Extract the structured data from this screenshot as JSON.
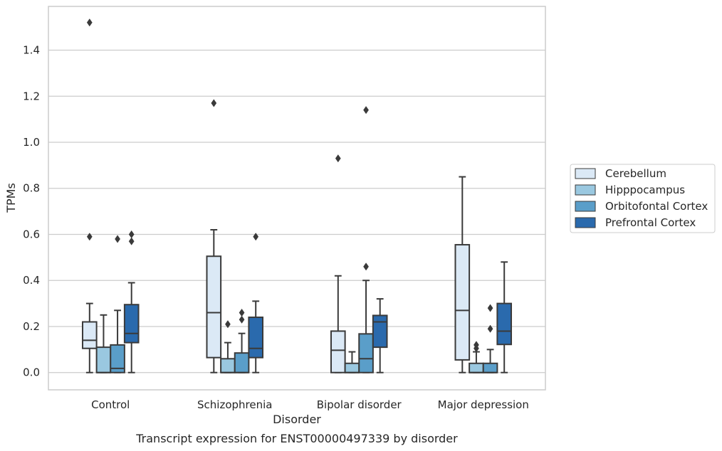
{
  "chart_data": {
    "type": "boxplot",
    "title": "",
    "caption": "Transcript expression for ENST00000497339 by disorder",
    "xlabel": "Disorder",
    "ylabel": "TPMs",
    "ylim": [
      -0.075,
      1.59
    ],
    "yticks": [
      0.0,
      0.2,
      0.4,
      0.6,
      0.8,
      1.0,
      1.2,
      1.4
    ],
    "ytick_labels": [
      "0.0",
      "0.2",
      "0.4",
      "0.6",
      "0.8",
      "1.0",
      "1.2",
      "1.4"
    ],
    "grid": "horizontal",
    "legend_position": "right",
    "categories": [
      "Control",
      "Schizophrenia",
      "Bipolar disorder",
      "Major depression"
    ],
    "series": [
      {
        "name": "Cerebellum",
        "color": "#dbe9f6",
        "boxes": [
          {
            "q1": 0.105,
            "median": 0.14,
            "q3": 0.22,
            "whisker_low": 0.0,
            "whisker_high": 0.3,
            "outliers": [
              0.59,
              1.52
            ]
          },
          {
            "q1": 0.065,
            "median": 0.26,
            "q3": 0.505,
            "whisker_low": 0.0,
            "whisker_high": 0.62,
            "outliers": [
              1.17
            ]
          },
          {
            "q1": 0.0,
            "median": 0.097,
            "q3": 0.18,
            "whisker_low": 0.0,
            "whisker_high": 0.42,
            "outliers": [
              0.93
            ]
          },
          {
            "q1": 0.055,
            "median": 0.27,
            "q3": 0.555,
            "whisker_low": 0.0,
            "whisker_high": 0.85,
            "outliers": []
          }
        ]
      },
      {
        "name": "Hipppocampus",
        "color": "#9ac8e0",
        "boxes": [
          {
            "q1": 0.0,
            "median": 0.0,
            "q3": 0.11,
            "whisker_low": 0.0,
            "whisker_high": 0.25,
            "outliers": []
          },
          {
            "q1": 0.0,
            "median": 0.0,
            "q3": 0.06,
            "whisker_low": 0.0,
            "whisker_high": 0.13,
            "outliers": [
              0.21
            ]
          },
          {
            "q1": 0.0,
            "median": 0.0,
            "q3": 0.04,
            "whisker_low": 0.0,
            "whisker_high": 0.09,
            "outliers": []
          },
          {
            "q1": 0.0,
            "median": 0.0,
            "q3": 0.04,
            "whisker_low": 0.0,
            "whisker_high": 0.09,
            "outliers": [
              0.105,
              0.12
            ]
          }
        ]
      },
      {
        "name": "Orbitofontal Cortex",
        "color": "#5a9ec9",
        "boxes": [
          {
            "q1": 0.0,
            "median": 0.018,
            "q3": 0.12,
            "whisker_low": 0.0,
            "whisker_high": 0.27,
            "outliers": [
              0.58
            ]
          },
          {
            "q1": 0.0,
            "median": 0.0,
            "q3": 0.085,
            "whisker_low": 0.0,
            "whisker_high": 0.17,
            "outliers": [
              0.23,
              0.26
            ]
          },
          {
            "q1": 0.0,
            "median": 0.06,
            "q3": 0.168,
            "whisker_low": 0.0,
            "whisker_high": 0.4,
            "outliers": [
              0.46,
              1.14
            ]
          },
          {
            "q1": 0.0,
            "median": 0.0,
            "q3": 0.04,
            "whisker_low": 0.0,
            "whisker_high": 0.1,
            "outliers": [
              0.19,
              0.28
            ]
          }
        ]
      },
      {
        "name": "Prefrontal Cortex",
        "color": "#2a6aad",
        "boxes": [
          {
            "q1": 0.13,
            "median": 0.17,
            "q3": 0.295,
            "whisker_low": 0.0,
            "whisker_high": 0.39,
            "outliers": [
              0.57,
              0.6
            ]
          },
          {
            "q1": 0.065,
            "median": 0.105,
            "q3": 0.24,
            "whisker_low": 0.0,
            "whisker_high": 0.31,
            "outliers": [
              0.59
            ]
          },
          {
            "q1": 0.11,
            "median": 0.22,
            "q3": 0.248,
            "whisker_low": 0.0,
            "whisker_high": 0.32,
            "outliers": []
          },
          {
            "q1": 0.122,
            "median": 0.18,
            "q3": 0.3,
            "whisker_low": 0.0,
            "whisker_high": 0.48,
            "outliers": []
          }
        ]
      }
    ],
    "colors": {
      "box_edge": "#3a3a3a",
      "grid": "#cccccc",
      "frame": "#cccccc",
      "text": "#262626"
    }
  }
}
